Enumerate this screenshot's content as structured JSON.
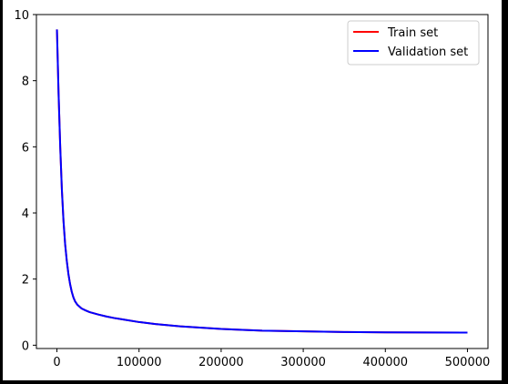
{
  "chart_data": {
    "type": "line",
    "title": "",
    "xlabel": "",
    "ylabel": "",
    "xlim": [
      -25000,
      525000
    ],
    "ylim": [
      -0.1,
      10
    ],
    "xticks": [
      0,
      100000,
      200000,
      300000,
      400000,
      500000
    ],
    "xtick_labels": [
      "0",
      "100000",
      "200000",
      "300000",
      "400000",
      "500000"
    ],
    "yticks": [
      0,
      2,
      4,
      6,
      8,
      10
    ],
    "ytick_labels": [
      "0",
      "2",
      "4",
      "6",
      "8",
      "10"
    ],
    "grid": false,
    "legend_position": "upper right",
    "series": [
      {
        "name": "Train set",
        "color": "#ff0000",
        "x": [
          0,
          2000,
          4000,
          6000,
          8000,
          10000,
          12000,
          14000,
          16000,
          18000,
          20000,
          22000,
          25000,
          30000,
          35000,
          40000,
          50000,
          60000,
          70000,
          80000,
          100000,
          120000,
          150000,
          200000,
          250000,
          300000,
          350000,
          400000,
          450000,
          500000
        ],
        "y": [
          9.55,
          7.6,
          6.0,
          4.7,
          3.75,
          3.05,
          2.55,
          2.15,
          1.85,
          1.62,
          1.45,
          1.33,
          1.22,
          1.11,
          1.05,
          1.0,
          0.93,
          0.87,
          0.82,
          0.78,
          0.7,
          0.64,
          0.57,
          0.49,
          0.44,
          0.42,
          0.4,
          0.39,
          0.385,
          0.38
        ]
      },
      {
        "name": "Validation set",
        "color": "#0000ff",
        "x": [
          0,
          2000,
          4000,
          6000,
          8000,
          10000,
          12000,
          14000,
          16000,
          18000,
          20000,
          22000,
          25000,
          30000,
          35000,
          40000,
          50000,
          60000,
          70000,
          80000,
          100000,
          120000,
          150000,
          200000,
          250000,
          300000,
          350000,
          400000,
          450000,
          500000
        ],
        "y": [
          9.55,
          7.6,
          6.0,
          4.7,
          3.75,
          3.05,
          2.55,
          2.15,
          1.85,
          1.62,
          1.45,
          1.33,
          1.22,
          1.11,
          1.05,
          1.0,
          0.93,
          0.87,
          0.82,
          0.78,
          0.7,
          0.64,
          0.57,
          0.49,
          0.44,
          0.42,
          0.4,
          0.39,
          0.385,
          0.38
        ]
      }
    ]
  }
}
